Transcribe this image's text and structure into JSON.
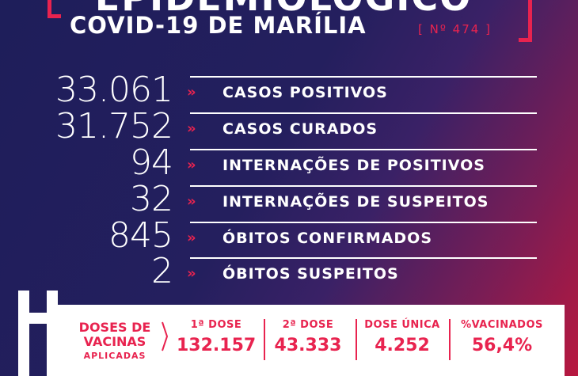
{
  "header": {
    "title": "EPIDEMIOLÓGICO",
    "subtitle": "COVID-19 DE MARÍLIA",
    "edition": "[ Nº 474 ]"
  },
  "stats": [
    {
      "value": "33.061",
      "label": "CASOS POSITIVOS"
    },
    {
      "value": "31.752",
      "label": "CASOS CURADOS"
    },
    {
      "value": "94",
      "label": "INTERNAÇÕES DE POSITIVOS"
    },
    {
      "value": "32",
      "label": "INTERNAÇÕES DE SUSPEITOS"
    },
    {
      "value": "845",
      "label": "ÓBITOS CONFIRMADOS"
    },
    {
      "value": "2",
      "label": "ÓBITOS SUSPEITOS"
    }
  ],
  "arrow_glyph": "»",
  "vaccines": {
    "title_line1": "DOSES DE",
    "title_line2": "VACINAS",
    "title_line3": "APLICADAS",
    "columns": [
      {
        "label": "1ª DOSE",
        "value": "132.157"
      },
      {
        "label": "2ª DOSE",
        "value": "43.333"
      },
      {
        "label": "DOSE ÚNICA",
        "value": "4.252"
      },
      {
        "label": "%VACINADOS",
        "value": "56,4%"
      }
    ]
  },
  "colors": {
    "accent": "#e8234f",
    "background": "#1e1e5a"
  }
}
